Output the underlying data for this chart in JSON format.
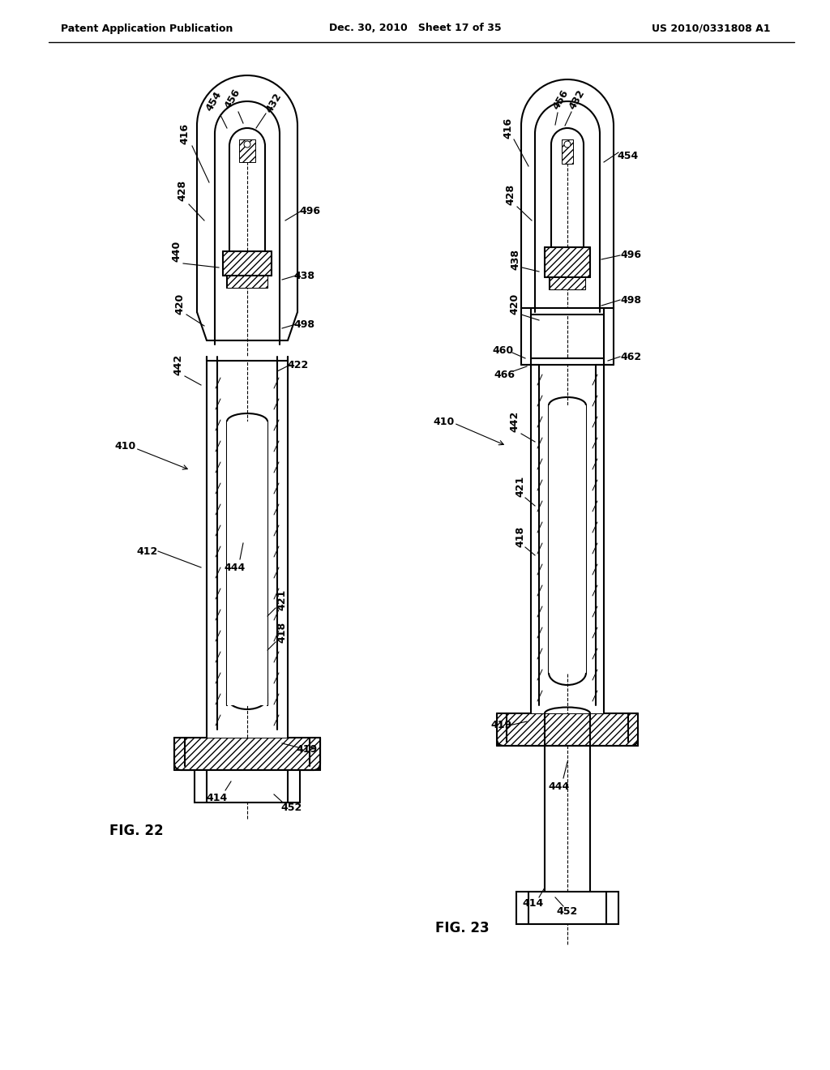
{
  "header_left": "Patent Application Publication",
  "header_mid": "Dec. 30, 2010   Sheet 17 of 35",
  "header_right": "US 2010/0331808 A1",
  "fig22_label": "FIG. 22",
  "fig23_label": "FIG. 23",
  "bg_color": "#ffffff",
  "line_color": "#000000"
}
